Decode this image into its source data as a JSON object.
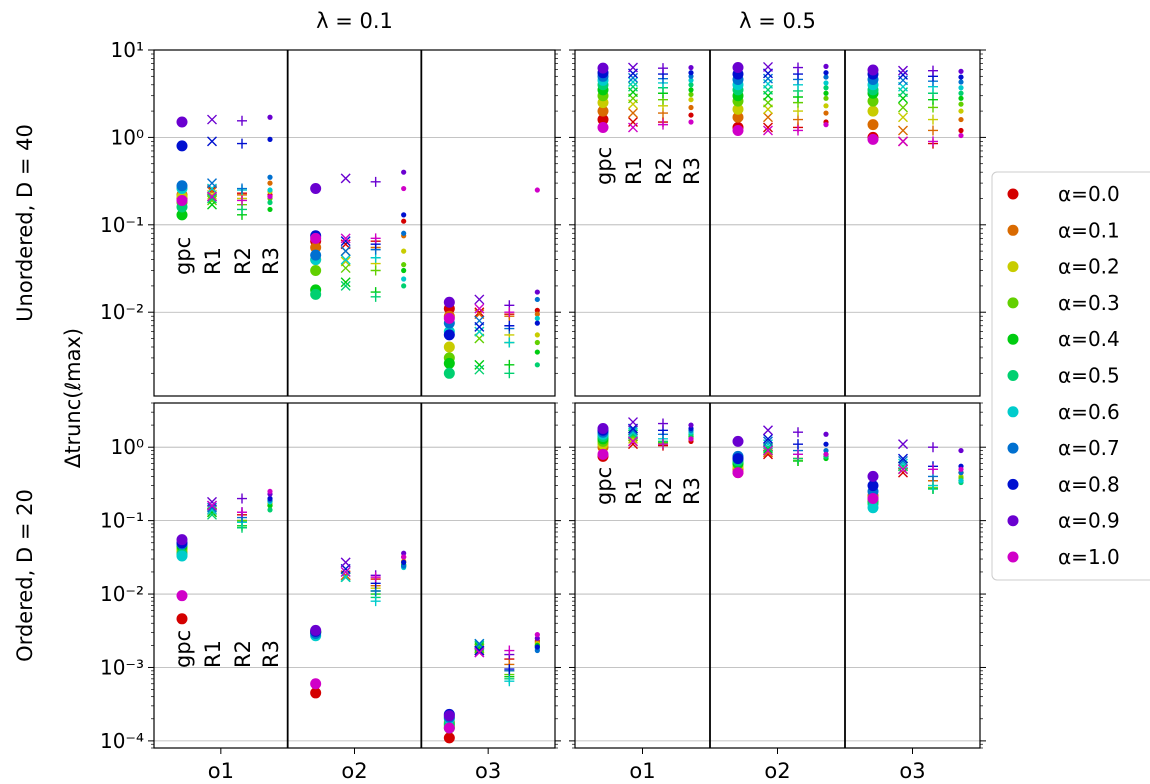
{
  "chart_data": {
    "type": "scatter",
    "yscale": "log",
    "column_titles": [
      "λ = 0.1",
      "λ = 0.5"
    ],
    "row_labels": [
      "Unordered, D = 40",
      "Ordered, D = 20"
    ],
    "ylabel": "Δtrunc(ℓmax)",
    "categories": [
      "o1",
      "o2",
      "o3"
    ],
    "methods": [
      "gpc",
      "R1",
      "R2",
      "R3"
    ],
    "method_markers": {
      "gpc": "large-dot",
      "R1": "x",
      "R2": "plus",
      "R3": "small-dot"
    },
    "alpha_values": [
      "0.0",
      "0.1",
      "0.2",
      "0.3",
      "0.4",
      "0.5",
      "0.6",
      "0.7",
      "0.8",
      "0.9",
      "1.0"
    ],
    "alpha_colors": [
      "#d40000",
      "#d96a00",
      "#c8cc00",
      "#62d000",
      "#00cc10",
      "#00d070",
      "#00cccc",
      "#0070d0",
      "#0010d0",
      "#6a00d0",
      "#d000c8"
    ],
    "legend": {
      "position": "right",
      "labels": [
        "α=0.0",
        "α=0.1",
        "α=0.2",
        "α=0.3",
        "α=0.4",
        "α=0.5",
        "α=0.6",
        "α=0.7",
        "α=0.8",
        "α=0.9",
        "α=1.0"
      ]
    },
    "panels": [
      {
        "row": 0,
        "col": 0,
        "ylim": [
          0.0011,
          10
        ],
        "yticks": [
          {
            "v": 10,
            "t": "10¹"
          },
          {
            "v": 1,
            "t": "10⁰"
          },
          {
            "v": 0.1,
            "t": "10⁻¹"
          },
          {
            "v": 0.01,
            "t": "10⁻²"
          }
        ],
        "method_annotation": true,
        "data": {
          "o1": {
            "gpc": [
              0.2,
              0.22,
              0.21,
              0.18,
              0.13,
              0.16,
              0.26,
              0.28,
              0.8,
              1.5,
              0.19
            ],
            "R1": [
              0.25,
              0.24,
              0.22,
              0.19,
              0.17,
              0.2,
              0.26,
              0.3,
              0.9,
              1.6,
              0.21
            ],
            "R2": [
              0.23,
              0.22,
              0.2,
              0.17,
              0.13,
              0.15,
              0.25,
              0.26,
              0.85,
              1.55,
              0.19
            ],
            "R3": [
              0.22,
              0.3,
              0.24,
              0.2,
              0.15,
              0.18,
              0.25,
              0.35,
              0.95,
              1.7,
              0.21
            ]
          },
          "o2": {
            "gpc": [
              0.065,
              0.055,
              0.04,
              0.03,
              0.018,
              0.016,
              0.04,
              0.045,
              0.075,
              0.26,
              0.07
            ],
            "R1": [
              0.06,
              0.05,
              0.038,
              0.032,
              0.022,
              0.02,
              0.04,
              0.05,
              0.065,
              0.34,
              0.07
            ],
            "R2": [
              0.065,
              0.055,
              0.036,
              0.03,
              0.017,
              0.015,
              0.042,
              0.052,
              0.06,
              0.31,
              0.07
            ],
            "R3": [
              0.11,
              0.075,
              0.05,
              0.035,
              0.03,
              0.02,
              0.024,
              0.08,
              0.13,
              0.4,
              0.26
            ]
          },
          "o3": {
            "gpc": [
              0.011,
              0.009,
              0.004,
              0.003,
              0.0026,
              0.002,
              0.006,
              0.0075,
              0.0055,
              0.013,
              0.0085
            ],
            "R1": [
              0.01,
              0.0095,
              0.006,
              0.005,
              0.0025,
              0.0022,
              0.006,
              0.008,
              0.0068,
              0.014,
              0.011
            ],
            "R2": [
              0.0095,
              0.009,
              0.0055,
              0.0045,
              0.0025,
              0.002,
              0.0045,
              0.0065,
              0.007,
              0.012,
              0.01
            ],
            "R3": [
              0.0105,
              0.0095,
              0.0055,
              0.0045,
              0.0035,
              0.0025,
              0.0085,
              0.014,
              0.0075,
              0.017,
              0.25
            ]
          }
        }
      },
      {
        "row": 0,
        "col": 1,
        "ylim": [
          0.0011,
          10
        ],
        "yticks": [],
        "method_annotation": true,
        "data": {
          "o1": {
            "gpc": [
              1.6,
              2,
              2.5,
              3,
              3.5,
              4,
              4.5,
              5,
              5.5,
              6.2,
              1.3
            ],
            "R1": [
              1.5,
              1.9,
              2.4,
              2.8,
              3.3,
              3.8,
              4.3,
              4.8,
              5.4,
              6.3,
              1.3
            ],
            "R2": [
              1.5,
              1.9,
              2.3,
              2.7,
              3.2,
              3.7,
              4.2,
              4.7,
              5.3,
              6.2,
              1.4
            ],
            "R3": [
              1.8,
              2.2,
              2.7,
              3.1,
              3.5,
              4,
              4.5,
              5,
              5.5,
              6.3,
              1.5
            ]
          },
          "o2": {
            "gpc": [
              1.3,
              1.7,
              2.1,
              2.6,
              3,
              3.5,
              4,
              4.6,
              5.3,
              6.3,
              1.2
            ],
            "R1": [
              1.3,
              1.7,
              2.1,
              2.5,
              3,
              3.5,
              4.1,
              4.7,
              5.4,
              6.4,
              1.2
            ],
            "R2": [
              1.3,
              1.6,
              2,
              2.5,
              2.9,
              3.4,
              4,
              4.6,
              5.3,
              6.3,
              1.2
            ],
            "R3": [
              1.5,
              1.9,
              2.3,
              2.8,
              3.2,
              3.7,
              4.2,
              4.9,
              5.5,
              6.5,
              1.4
            ]
          },
          "o3": {
            "gpc": [
              1,
              1.4,
              2,
              2.6,
              3.2,
              3.5,
              4,
              4.6,
              5.3,
              5.9,
              0.95
            ],
            "R1": [
              0.9,
              1.2,
              1.7,
              2.2,
              2.8,
              3.3,
              3.8,
              4.5,
              5.2,
              5.8,
              0.9
            ],
            "R2": [
              0.85,
              1.2,
              1.6,
              2.2,
              2.7,
              3.2,
              3.8,
              4.4,
              5,
              5.8,
              0.9
            ],
            "R3": [
              1.2,
              1.6,
              2,
              2.4,
              2.8,
              3.2,
              3.7,
              4.3,
              4.9,
              5.7,
              1.05
            ]
          }
        }
      },
      {
        "row": 1,
        "col": 0,
        "ylim": [
          8e-05,
          4
        ],
        "yticks": [
          {
            "v": 1,
            "t": "10⁰"
          },
          {
            "v": 0.1,
            "t": "10⁻¹"
          },
          {
            "v": 0.01,
            "t": "10⁻²"
          },
          {
            "v": 0.001,
            "t": "10⁻³"
          },
          {
            "v": 0.0001,
            "t": "10⁻⁴"
          }
        ],
        "method_annotation": true,
        "data": {
          "o1": {
            "gpc": [
              0.0046,
              0.038,
              0.04,
              0.042,
              0.045,
              0.035,
              0.033,
              0.048,
              0.05,
              0.055,
              0.0095
            ],
            "R1": [
              0.14,
              0.13,
              0.13,
              0.14,
              0.13,
              0.12,
              0.14,
              0.15,
              0.16,
              0.18,
              0.16
            ],
            "R2": [
              0.12,
              0.1,
              0.1,
              0.1,
              0.085,
              0.08,
              0.095,
              0.11,
              0.13,
              0.2,
              0.13
            ],
            "R3": [
              0.18,
              0.17,
              0.17,
              0.16,
              0.16,
              0.14,
              0.18,
              0.19,
              0.2,
              0.23,
              0.25
            ]
          },
          "o2": {
            "gpc": [
              0.00045,
              0.003,
              0.003,
              0.003,
              0.003,
              0.003,
              0.0027,
              0.0029,
              0.0031,
              0.0032,
              0.0006
            ],
            "R1": [
              0.018,
              0.018,
              0.017,
              0.017,
              0.017,
              0.017,
              0.017,
              0.02,
              0.022,
              0.027,
              0.02
            ],
            "R2": [
              0.016,
              0.013,
              0.012,
              0.011,
              0.01,
              0.009,
              0.008,
              0.011,
              0.014,
              0.018,
              0.017
            ],
            "R3": [
              0.032,
              0.028,
              0.027,
              0.025,
              0.025,
              0.024,
              0.023,
              0.024,
              0.027,
              0.036,
              0.032
            ]
          },
          "o3": {
            "gpc": [
              0.00011,
              0.00018,
              0.00017,
              0.00016,
              0.00015,
              0.00017,
              0.0002,
              0.00021,
              0.00023,
              0.00022,
              0.00015
            ],
            "R1": [
              0.0017,
              0.0018,
              0.0018,
              0.0018,
              0.0019,
              0.002,
              0.0021,
              0.0021,
              0.0017,
              0.0016,
              0.0016
            ],
            "R2": [
              0.0013,
              0.0011,
              0.0009,
              0.0008,
              0.00075,
              0.0007,
              0.00065,
              0.0009,
              0.00095,
              0.0015,
              0.0017
            ],
            "R3": [
              0.0023,
              0.0022,
              0.0021,
              0.002,
              0.002,
              0.0019,
              0.0018,
              0.0017,
              0.0019,
              0.0025,
              0.0028
            ]
          }
        }
      },
      {
        "row": 1,
        "col": 1,
        "ylim": [
          8e-05,
          4
        ],
        "yticks": [],
        "method_annotation": true,
        "data": {
          "o1": {
            "gpc": [
              0.75,
              1,
              1.1,
              1.2,
              1.3,
              1.4,
              1.5,
              1.6,
              1.7,
              1.8,
              0.8
            ],
            "R1": [
              1.1,
              1.2,
              1.3,
              1.4,
              1.5,
              1.5,
              1.6,
              1.7,
              1.8,
              2.2,
              1.2
            ],
            "R2": [
              1.05,
              1.1,
              1.1,
              1.15,
              1.2,
              1.2,
              1.3,
              1.5,
              1.7,
              2.1,
              1.1
            ],
            "R3": [
              1.2,
              1.3,
              1.3,
              1.4,
              1.4,
              1.5,
              1.6,
              1.7,
              1.8,
              2,
              1.3
            ]
          },
          "o2": {
            "gpc": [
              0.45,
              0.5,
              0.55,
              0.6,
              0.6,
              0.65,
              0.7,
              0.75,
              0.7,
              1.2,
              0.45
            ],
            "R1": [
              0.8,
              0.85,
              0.9,
              0.9,
              0.95,
              1,
              1.1,
              1.2,
              1.3,
              1.7,
              0.9
            ],
            "R2": [
              0.7,
              0.7,
              0.7,
              0.65,
              0.65,
              0.7,
              0.8,
              0.9,
              1.1,
              1.6,
              0.8
            ],
            "R3": [
              0.75,
              0.8,
              0.8,
              0.75,
              0.7,
              0.75,
              0.8,
              0.9,
              1.1,
              1.5,
              0.8
            ]
          },
          "o3": {
            "gpc": [
              0.2,
              0.22,
              0.2,
              0.2,
              0.18,
              0.17,
              0.15,
              0.25,
              0.3,
              0.4,
              0.2
            ],
            "R1": [
              0.45,
              0.5,
              0.5,
              0.5,
              0.55,
              0.55,
              0.6,
              0.65,
              0.7,
              1.1,
              0.5
            ],
            "R2": [
              0.35,
              0.35,
              0.3,
              0.28,
              0.27,
              0.27,
              0.3,
              0.4,
              0.55,
              1,
              0.5
            ],
            "R3": [
              0.45,
              0.45,
              0.4,
              0.38,
              0.35,
              0.33,
              0.35,
              0.45,
              0.55,
              0.9,
              0.5
            ]
          }
        }
      }
    ]
  }
}
